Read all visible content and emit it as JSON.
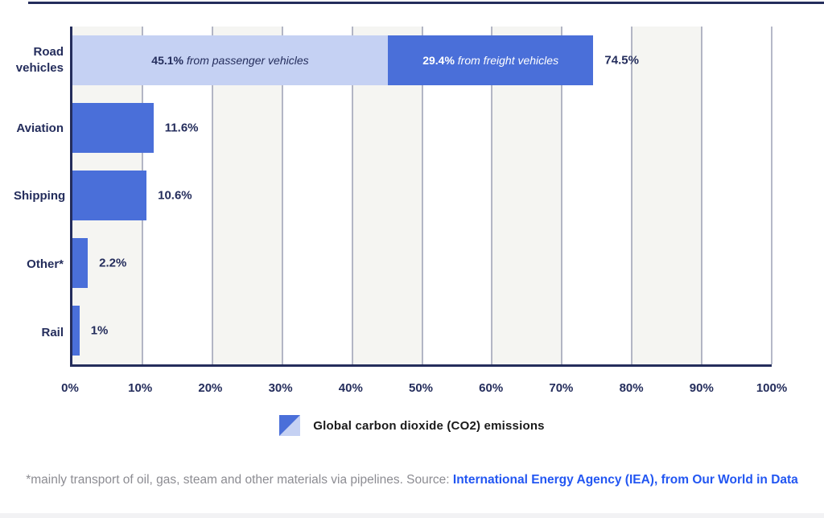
{
  "colors": {
    "bar_primary": "#4a6fd9",
    "bar_secondary": "#c5d1f3",
    "navy_text": "#242d5c",
    "band_gray": "#f5f5f2",
    "gridline": "#6b7190",
    "legend_text": "#1a1a1a",
    "footnote_gray": "#8c8c92",
    "link_blue": "#2256f2",
    "segment_text_on_light": "#242d5c",
    "segment_text_on_dark": "#ffffff"
  },
  "chart_data": {
    "type": "bar",
    "orientation": "horizontal",
    "stacked": true,
    "xlim": [
      0,
      100
    ],
    "x_ticks": [
      "0%",
      "10%",
      "20%",
      "30%",
      "40%",
      "50%",
      "60%",
      "70%",
      "80%",
      "90%",
      "100%"
    ],
    "grid": "vertical gridlines every 10% over alternating shaded bands",
    "legend_position": "bottom-center",
    "legend_label": "Global carbon dioxide (CO2) emissions",
    "categories": [
      "Road vehicles",
      "Aviation",
      "Shipping",
      "Other*",
      "Rail"
    ],
    "totals": [
      74.5,
      11.6,
      10.6,
      2.2,
      1
    ],
    "rows": [
      {
        "category": "Road vehicles",
        "total": 74.5,
        "total_label": "74.5%",
        "segments": [
          {
            "value": 45.1,
            "value_label": "45.1%",
            "description": "from passenger vehicles",
            "color_key": "secondary"
          },
          {
            "value": 29.4,
            "value_label": "29.4%",
            "description": "from freight vehicles",
            "color_key": "primary"
          }
        ]
      },
      {
        "category": "Aviation",
        "total": 11.6,
        "total_label": "11.6%",
        "segments": [
          {
            "value": 11.6,
            "color_key": "primary"
          }
        ]
      },
      {
        "category": "Shipping",
        "total": 10.6,
        "total_label": "10.6%",
        "segments": [
          {
            "value": 10.6,
            "color_key": "primary"
          }
        ]
      },
      {
        "category": "Other*",
        "total": 2.2,
        "total_label": "2.2%",
        "segments": [
          {
            "value": 2.2,
            "color_key": "primary"
          }
        ]
      },
      {
        "category": "Rail",
        "total": 1,
        "total_label": "1%",
        "segments": [
          {
            "value": 1,
            "color_key": "primary"
          }
        ]
      }
    ]
  },
  "legend": {
    "label": "Global carbon dioxide (CO2) emissions"
  },
  "footnote": {
    "text": "*mainly transport of oil, gas, steam and other materials via pipelines. Source: ",
    "link": "International Energy Agency (IEA), from Our World in Data"
  }
}
